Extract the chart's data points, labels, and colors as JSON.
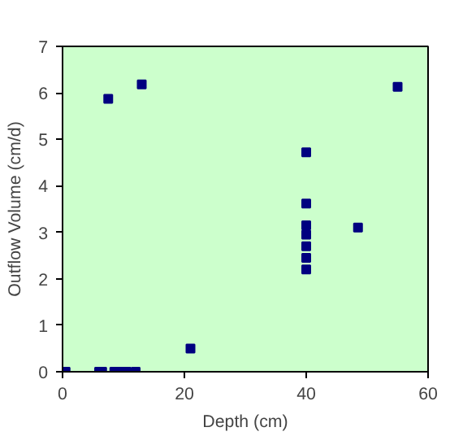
{
  "chart_data": {
    "type": "scatter",
    "xlabel": "Depth (cm)",
    "ylabel": "Outflow Volume (cm/d)",
    "x": [
      0.5,
      6,
      6.5,
      8.5,
      9.5,
      10.5,
      12,
      7.5,
      13,
      21,
      55,
      48.5,
      40,
      40,
      40,
      40,
      40,
      40,
      40
    ],
    "series": [
      {
        "color": "#000080",
        "values": [
          0,
          0,
          0,
          0,
          0,
          0,
          0,
          5.87,
          6.18,
          0.5,
          6.13,
          3.1,
          4.72,
          3.62,
          3.15,
          2.95,
          2.7,
          2.45,
          2.2
        ]
      }
    ],
    "xlim": [
      0,
      60
    ],
    "ylim": [
      0,
      7
    ],
    "xticks": [
      0,
      20,
      40,
      60
    ],
    "yticks": [
      0,
      1,
      2,
      3,
      4,
      5,
      6,
      7
    ],
    "grid": false,
    "marker": "square"
  }
}
